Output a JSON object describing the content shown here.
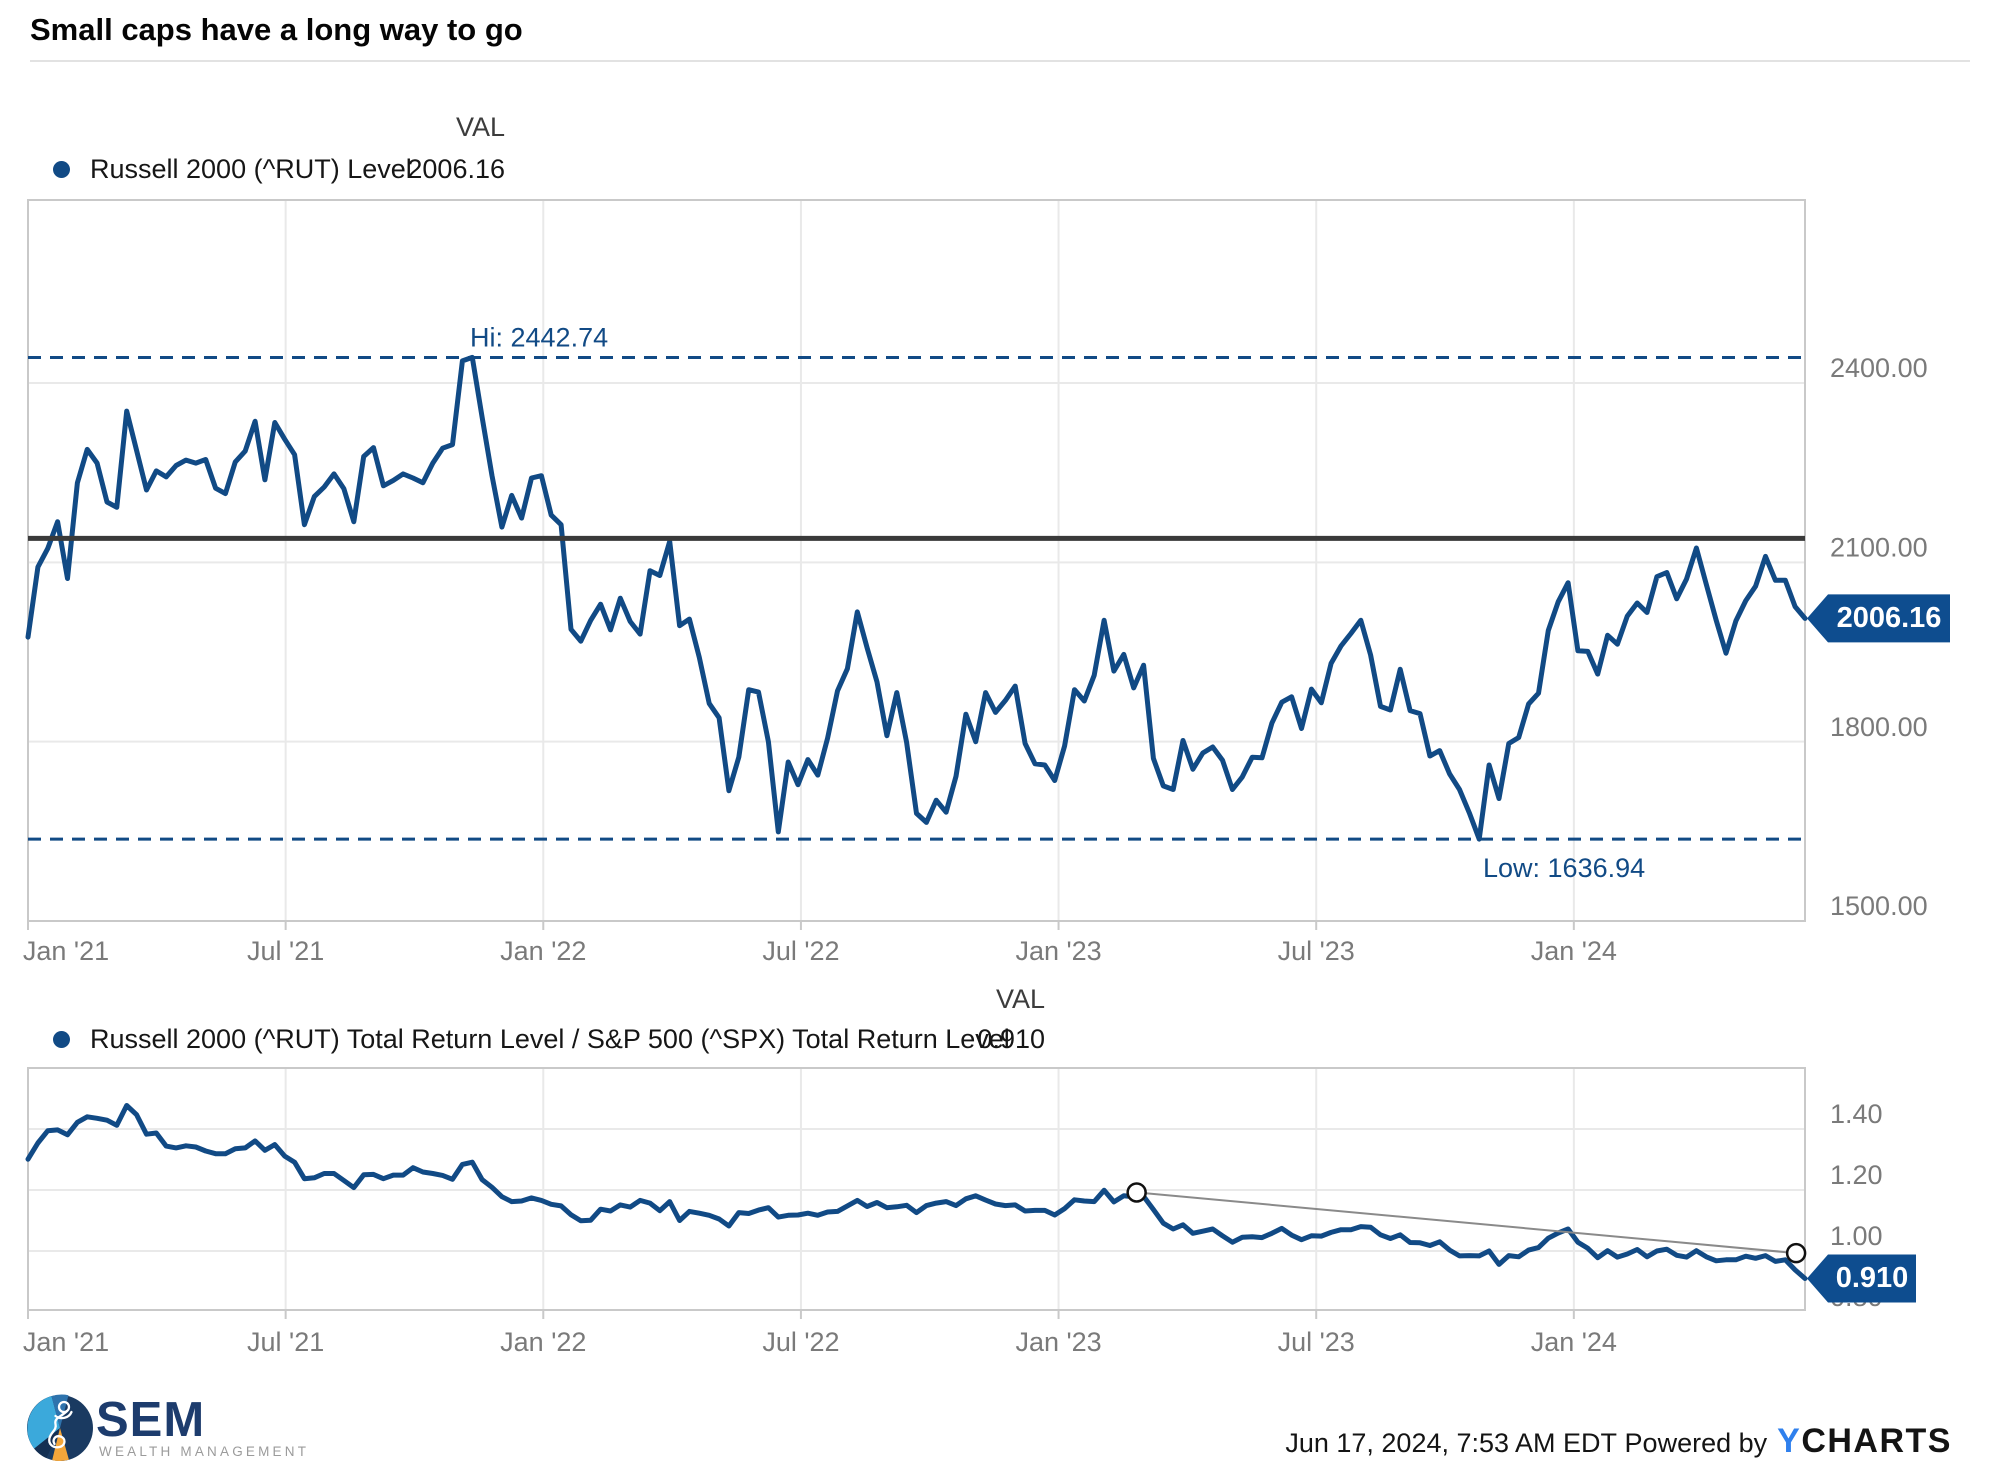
{
  "title": "Small caps have a long way to go",
  "colors": {
    "series_blue": "#114a85",
    "badge_bg": "#0e4d8f",
    "badge_text": "#ffffff",
    "reference_line": "#3a3a3a",
    "annotation_grey": "#8a8a8a",
    "grid": "#e9e9e9",
    "plot_border": "#c9c9c9",
    "axis_text": "#7a7a7a",
    "ycharts_blue": "#2f80ed",
    "sem_navy": "#1d3c6d",
    "sem_lightblue": "#3ba9db",
    "sem_midblue": "#2e73ad",
    "sem_orange": "#f4a63a"
  },
  "chart_data": [
    {
      "type": "line",
      "legend": "Russell 2000 (^RUT) Level",
      "val_header": "VAL",
      "val": "2006.16",
      "x_tick_labels": [
        "Jan '21",
        "Jul '21",
        "Jan '22",
        "Jul '22",
        "Jan '23",
        "Jul '23",
        "Jan '24"
      ],
      "x_tick_months": [
        0,
        6,
        12,
        18,
        24,
        30,
        36
      ],
      "y_tick_labels": [
        "2400.00",
        "2100.00",
        "1800.00",
        "1500.00"
      ],
      "y_tick_values": [
        2400,
        2100,
        1800,
        1500
      ],
      "ylim": [
        1500,
        2706
      ],
      "x_range_weeks": 180,
      "hi": {
        "label": "Hi: 2442.74",
        "value": 2442.74
      },
      "low": {
        "label": "Low: 1636.94",
        "value": 1636.94
      },
      "reference_level": 2140,
      "values": [
        1975,
        2092,
        2123,
        2168,
        2073,
        2233,
        2289,
        2266,
        2201,
        2192,
        2353,
        2287,
        2221,
        2253,
        2243,
        2262,
        2271,
        2266,
        2272,
        2224,
        2215,
        2268,
        2286,
        2336,
        2238,
        2334,
        2306,
        2280,
        2163,
        2210,
        2226,
        2248,
        2223,
        2168,
        2277,
        2292,
        2228,
        2237,
        2248,
        2241,
        2233,
        2266,
        2291,
        2297,
        2437,
        2442.74,
        2343,
        2245,
        2159,
        2212,
        2174,
        2241,
        2245,
        2179,
        2163,
        1988,
        1968,
        2003,
        2030,
        1987,
        2040,
        2001,
        1980,
        2086,
        2078,
        2135,
        1994,
        2005,
        1941,
        1864,
        1840,
        1718,
        1774,
        1887,
        1883,
        1800,
        1649,
        1766,
        1728,
        1770,
        1744,
        1806,
        1885,
        1922,
        2017,
        1957,
        1900,
        1810,
        1882,
        1799,
        1680,
        1665,
        1702,
        1682,
        1742,
        1846,
        1800,
        1882,
        1849,
        1869,
        1893,
        1797,
        1763,
        1761,
        1735,
        1793,
        1887,
        1868,
        1911,
        2003,
        1918,
        1946,
        1890,
        1928,
        1772,
        1726,
        1720,
        1802,
        1754,
        1781,
        1791,
        1769,
        1720,
        1741,
        1774,
        1773,
        1831,
        1866,
        1875,
        1822,
        1888,
        1865,
        1931,
        1960,
        1981,
        2003,
        1945,
        1859,
        1853,
        1921,
        1852,
        1847,
        1776,
        1785,
        1746,
        1720,
        1681,
        1636.94,
        1761,
        1705,
        1797,
        1807,
        1863,
        1881,
        1986,
        2034,
        2066,
        1952,
        1951,
        1913,
        1978,
        1963,
        2010,
        2032,
        2016,
        2076,
        2083,
        2039,
        2072,
        2124,
        2063,
        2003,
        1948,
        2002,
        2036,
        2060,
        2110,
        2070,
        2070,
        2026,
        2006.16
      ]
    },
    {
      "type": "line",
      "legend": "Russell 2000 (^RUT) Total Return Level / S&P 500 (^SPX) Total Return Level",
      "val_header": "VAL",
      "val": "0.910",
      "x_tick_labels": [
        "Jan '21",
        "Jul '21",
        "Jan '22",
        "Jul '22",
        "Jan '23",
        "Jul '23",
        "Jan '24"
      ],
      "x_tick_months": [
        0,
        6,
        12,
        18,
        24,
        30,
        36
      ],
      "y_tick_labels": [
        "1.40",
        "1.20",
        "1.00",
        "0.80"
      ],
      "y_tick_values": [
        1.4,
        1.2,
        1.0,
        0.8
      ],
      "ylim": [
        0.8,
        1.6
      ],
      "x_range_weeks": 180,
      "annotation": {
        "line": [
          {
            "week": 112.3,
            "value": 1.192
          },
          {
            "week": 179.1,
            "value": 0.993
          }
        ]
      },
      "values": [
        1.301,
        1.354,
        1.394,
        1.397,
        1.381,
        1.422,
        1.44,
        1.435,
        1.429,
        1.412,
        1.477,
        1.447,
        1.383,
        1.387,
        1.344,
        1.338,
        1.345,
        1.341,
        1.328,
        1.319,
        1.319,
        1.335,
        1.338,
        1.361,
        1.33,
        1.349,
        1.311,
        1.291,
        1.237,
        1.24,
        1.254,
        1.254,
        1.231,
        1.208,
        1.25,
        1.251,
        1.237,
        1.249,
        1.249,
        1.273,
        1.259,
        1.254,
        1.248,
        1.235,
        1.284,
        1.291,
        1.234,
        1.209,
        1.178,
        1.162,
        1.164,
        1.174,
        1.166,
        1.153,
        1.148,
        1.119,
        1.099,
        1.101,
        1.137,
        1.131,
        1.151,
        1.144,
        1.166,
        1.157,
        1.132,
        1.162,
        1.1,
        1.13,
        1.124,
        1.117,
        1.105,
        1.082,
        1.126,
        1.123,
        1.134,
        1.142,
        1.111,
        1.117,
        1.118,
        1.124,
        1.117,
        1.128,
        1.13,
        1.148,
        1.166,
        1.146,
        1.159,
        1.142,
        1.145,
        1.15,
        1.126,
        1.149,
        1.157,
        1.162,
        1.149,
        1.171,
        1.181,
        1.167,
        1.154,
        1.149,
        1.151,
        1.131,
        1.133,
        1.133,
        1.118,
        1.139,
        1.168,
        1.164,
        1.162,
        1.199,
        1.161,
        1.181,
        1.178,
        1.179,
        1.136,
        1.091,
        1.072,
        1.086,
        1.058,
        1.065,
        1.072,
        1.05,
        1.029,
        1.045,
        1.047,
        1.044,
        1.058,
        1.074,
        1.052,
        1.037,
        1.05,
        1.049,
        1.061,
        1.07,
        1.07,
        1.08,
        1.078,
        1.053,
        1.041,
        1.053,
        1.028,
        1.027,
        1.018,
        1.03,
        1.003,
        0.984,
        0.985,
        0.984,
        1.0,
        0.956,
        0.985,
        0.981,
        1.003,
        1.011,
        1.042,
        1.059,
        1.072,
        1.029,
        1.009,
        0.978,
        1.001,
        0.98,
        0.99,
        1.005,
        0.981,
        1.0,
        1.006,
        0.986,
        0.98,
        1.001,
        0.981,
        0.968,
        0.971,
        0.971,
        0.983,
        0.976,
        0.985,
        0.966,
        0.971,
        0.938,
        0.91
      ]
    }
  ],
  "footer": {
    "sem_name": "SEM",
    "sem_sub": "WEALTH MANAGEMENT",
    "timestamp": "Jun 17, 2024, 7:53 AM EDT",
    "powered_by": " Powered by",
    "ycharts_y": "Y",
    "ycharts_rest": "CHARTS"
  }
}
